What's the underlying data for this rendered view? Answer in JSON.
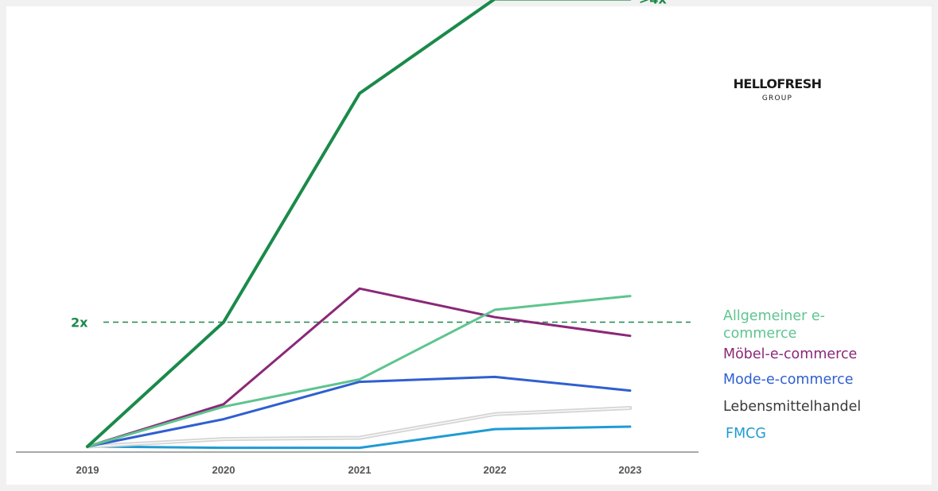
{
  "logo": {
    "main": "HELLOFRESH",
    "sub": "GROUP"
  },
  "annotations": {
    "end_label": ">4x",
    "ref_label": "2x",
    "ref_value": 2
  },
  "chart_data": {
    "type": "line",
    "x": [
      "2019",
      "2020",
      "2021",
      "2022",
      "2023"
    ],
    "ylim": [
      0,
      5
    ],
    "reference_lines": [
      {
        "value": 2,
        "label": "2x",
        "style": "dashed"
      }
    ],
    "series": [
      {
        "name": "HELLOFRESH GROUP",
        "color": "#1a8a4a",
        "values": [
          1.0,
          2.0,
          3.84,
          4.6,
          4.6
        ],
        "end_label": ">4x"
      },
      {
        "name": "Allgemeiner e-commerce",
        "color": "#5ec48f",
        "values": [
          1.0,
          1.32,
          1.54,
          2.1,
          2.21
        ]
      },
      {
        "name": "Möbel-e-commerce",
        "color": "#8b2877",
        "values": [
          1.0,
          1.34,
          2.27,
          2.04,
          1.89
        ]
      },
      {
        "name": "Mode-e-commerce",
        "color": "#2f5fd0",
        "values": [
          1.0,
          1.22,
          1.52,
          1.56,
          1.45
        ]
      },
      {
        "name": "Lebensmittelhandel",
        "color": "#b5b5b5",
        "values": [
          1.0,
          1.06,
          1.07,
          1.26,
          1.31
        ]
      },
      {
        "name": "FMCG",
        "color": "#1f9bd3",
        "values": [
          1.0,
          0.99,
          0.99,
          1.14,
          1.16
        ]
      }
    ]
  },
  "legend": [
    {
      "label": "Allgemeiner e-commerce",
      "color": "#5ec48f"
    },
    {
      "label": "Möbel-e-commerce",
      "color": "#8b2877"
    },
    {
      "label": "Mode-e-commerce",
      "color": "#2f5fd0"
    },
    {
      "label": "Lebensmittelhandel",
      "color": "#3a3a3a"
    },
    {
      "label": "FMCG",
      "color": "#1f9bd3"
    }
  ]
}
